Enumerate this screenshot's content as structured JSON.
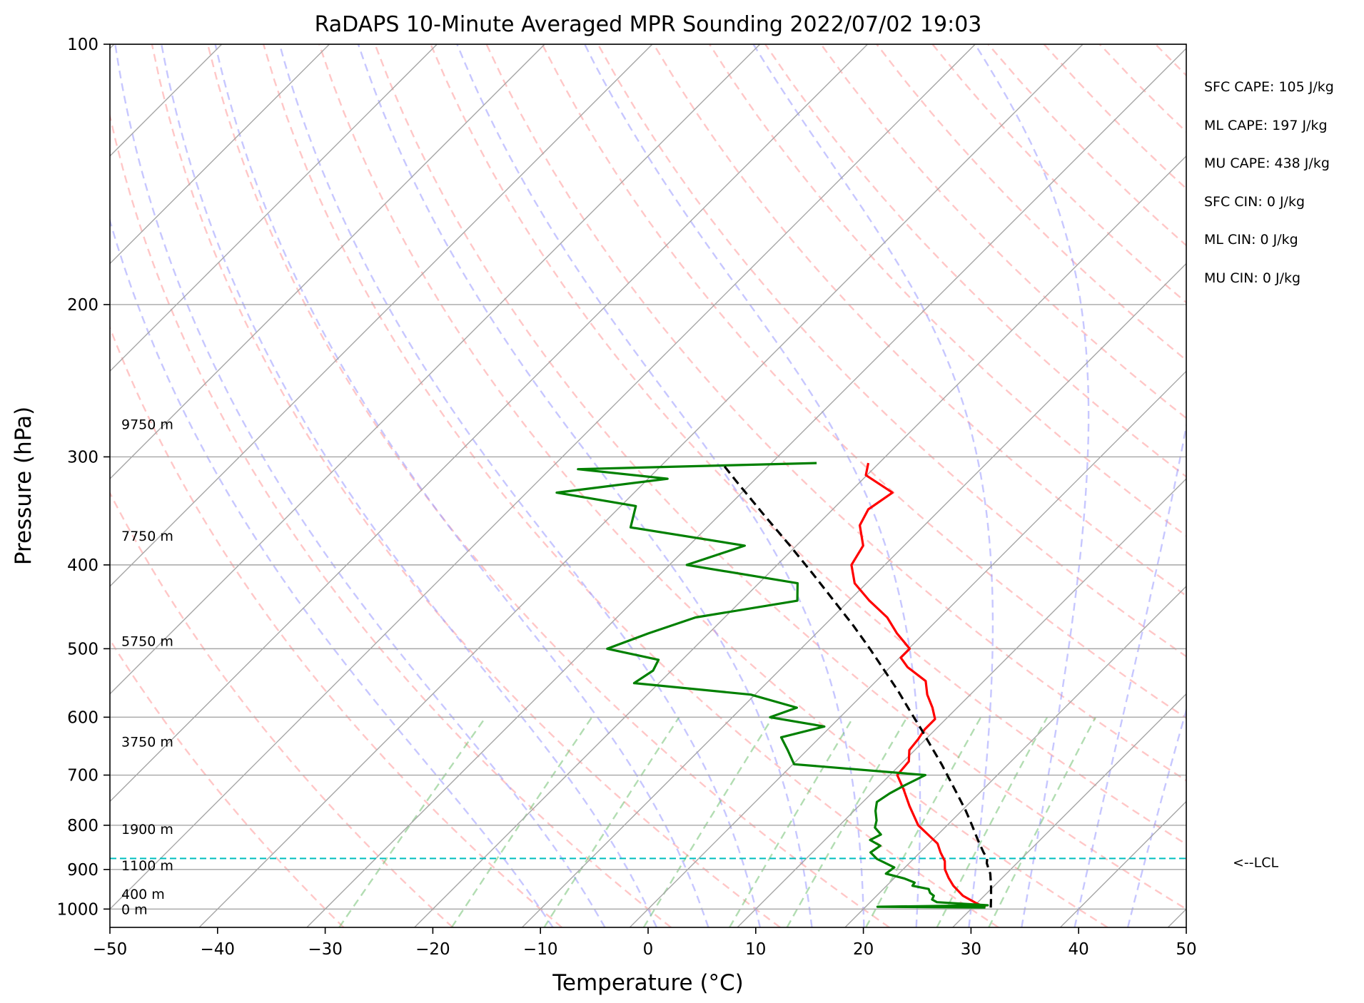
{
  "chart_data": {
    "type": "line",
    "title": "RaDAPS 10-Minute Averaged MPR Sounding 2022/07/02 19:03",
    "xlabel": "Temperature (°C)",
    "ylabel": "Pressure (hPa)",
    "xlim": [
      -50,
      50
    ],
    "ylim": [
      1050,
      100
    ],
    "yscale": "log",
    "skew": true,
    "grid": true,
    "xticks": [
      -50,
      -40,
      -30,
      -20,
      -10,
      0,
      10,
      20,
      30,
      40,
      50
    ],
    "xtick_labels": [
      "−50",
      "−40",
      "−30",
      "−20",
      "−10",
      "0",
      "10",
      "20",
      "30",
      "40",
      "50"
    ],
    "yticks": [
      100,
      200,
      300,
      400,
      500,
      600,
      700,
      800,
      900,
      1000
    ],
    "ytick_labels": [
      "100",
      "200",
      "300",
      "400",
      "500",
      "600",
      "700",
      "800",
      "900",
      "1000"
    ],
    "stats": [
      "SFC CAPE: 105 J/kg",
      "ML CAPE: 197 J/kg",
      "MU CAPE: 438 J/kg",
      "SFC CIN: 0 J/kg",
      "ML CIN: 0 J/kg",
      "MU CIN: 0 J/kg"
    ],
    "height_labels": [
      {
        "pressure": 275,
        "text": "9750 m"
      },
      {
        "pressure": 370,
        "text": "7750 m"
      },
      {
        "pressure": 490,
        "text": "5750 m"
      },
      {
        "pressure": 640,
        "text": "3750 m"
      },
      {
        "pressure": 808,
        "text": "1900 m"
      },
      {
        "pressure": 890,
        "text": "1100 m"
      },
      {
        "pressure": 960,
        "text": "400 m"
      },
      {
        "pressure": 1000,
        "text": "0 m"
      }
    ],
    "lcl": {
      "pressure": 874,
      "label": "<--LCL"
    },
    "series": [
      {
        "color": "#ff0000",
        "pressure": [
          996,
          983,
          965,
          940,
          920,
          900,
          880,
          860,
          840,
          800,
          760,
          727,
          700,
          675,
          655,
          636,
          620,
          603,
          585,
          565,
          545,
          525,
          512,
          500,
          480,
          460,
          440,
          420,
          400,
          380,
          360,
          345,
          330,
          315,
          305
        ],
        "temperature": [
          31.2,
          29.8,
          28.0,
          26.2,
          25.0,
          23.9,
          23.1,
          21.9,
          20.8,
          17.3,
          14.7,
          12.6,
          10.7,
          10.5,
          9.5,
          9.3,
          9.0,
          9.0,
          7.7,
          6.0,
          4.6,
          1.6,
          0.1,
          0.1,
          -2.5,
          -4.9,
          -8.1,
          -11.1,
          -13.1,
          -13.8,
          -16.0,
          -16.7,
          -16.0,
          -20.1,
          -21.0
        ]
      },
      {
        "color": "#008000",
        "pressure": [
          996,
          994,
          990,
          982,
          975,
          965,
          958,
          948,
          940,
          932,
          922,
          910,
          895,
          875,
          860,
          845,
          832,
          820,
          805,
          790,
          770,
          752,
          735,
          720,
          700,
          680,
          655,
          633,
          615,
          600,
          585,
          565,
          548,
          530,
          515,
          500,
          480,
          460,
          440,
          420,
          400,
          380,
          362,
          342,
          330,
          318,
          310,
          305
        ],
        "temperature": [
          31.2,
          21.1,
          31.2,
          26.2,
          25.5,
          25.3,
          24.7,
          24.2,
          22.4,
          22.3,
          21.0,
          18.8,
          19.0,
          16.6,
          15.4,
          15.7,
          14.2,
          14.7,
          13.5,
          13.0,
          12.0,
          11.3,
          11.7,
          12.3,
          13.3,
          0.1,
          -1.8,
          -3.6,
          -0.6,
          -6.5,
          -4.9,
          -10.4,
          -22.3,
          -21.7,
          -22.2,
          -28.0,
          -25.6,
          -22.7,
          -14.8,
          -16.4,
          -28.4,
          -24.8,
          -37.1,
          -38.6,
          -47.2,
          -38.2,
          -47.4,
          -25.8
        ]
      },
      {
        "color": "#000000",
        "dashed": true,
        "pressure": [
          996,
          970,
          940,
          910,
          885,
          874,
          860,
          830,
          800,
          770,
          740,
          710,
          680,
          650,
          620,
          590,
          560,
          530,
          500,
          470,
          440,
          410,
          380,
          350,
          320,
          305
        ],
        "temperature": [
          31.7,
          30.8,
          29.7,
          28.5,
          27.2,
          26.8,
          25.9,
          24.1,
          22.3,
          20.4,
          18.3,
          16.1,
          13.8,
          11.3,
          8.7,
          5.9,
          3.0,
          -0.2,
          -3.6,
          -7.3,
          -11.4,
          -15.8,
          -20.6,
          -25.9,
          -31.6,
          -34.6
        ]
      }
    ]
  }
}
